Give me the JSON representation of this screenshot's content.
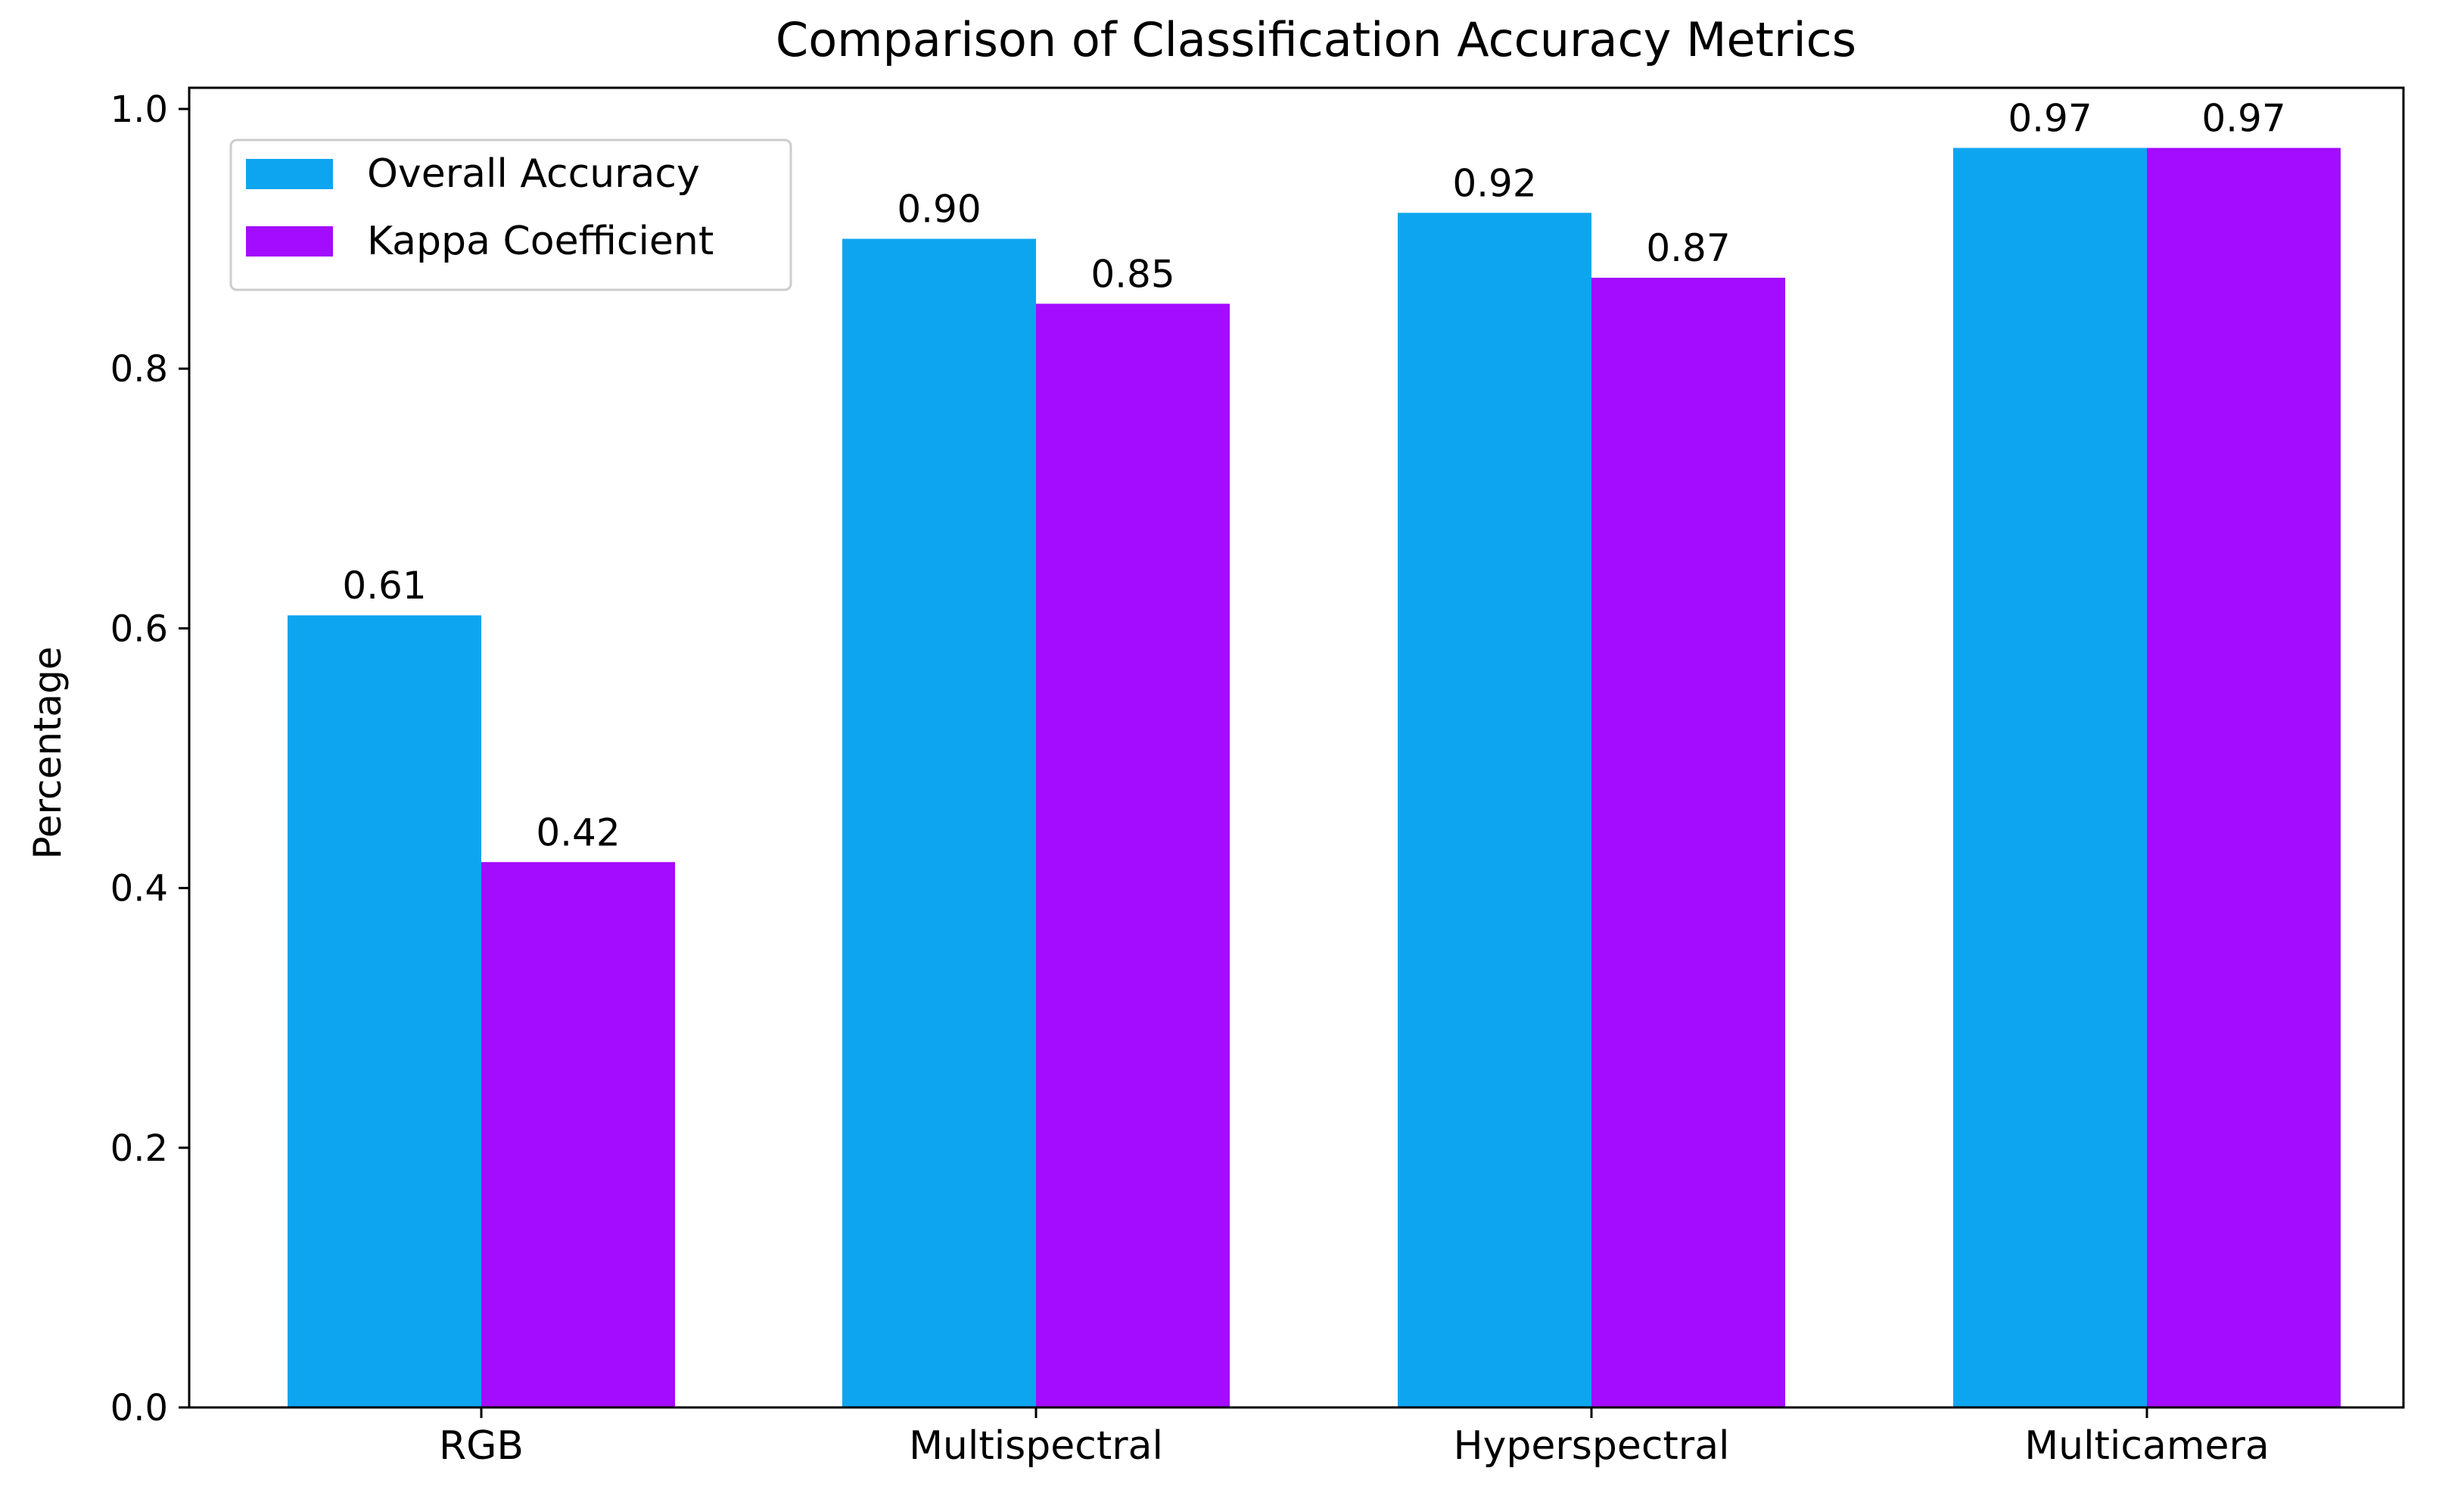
{
  "chart_data": {
    "type": "bar",
    "title": "Comparison of Classification Accuracy Metrics",
    "xlabel": "",
    "ylabel": "Percentage",
    "ylim": [
      0,
      1.0
    ],
    "yticks": [
      0.0,
      0.2,
      0.4,
      0.6,
      0.8,
      1.0
    ],
    "ytick_labels": [
      "0.0",
      "0.2",
      "0.4",
      "0.6",
      "0.8",
      "1.0"
    ],
    "grid": false,
    "legend_position": "upper-left",
    "categories": [
      "RGB",
      "Multispectral",
      "Hyperspectral",
      "Multicamera"
    ],
    "series": [
      {
        "name": "Overall Accuracy",
        "color": "#0ea5f0",
        "values": [
          0.61,
          0.9,
          0.92,
          0.97
        ],
        "labels": [
          "0.61",
          "0.90",
          "0.92",
          "0.97"
        ]
      },
      {
        "name": "Kappa Coefficient",
        "color": "#a30cff",
        "values": [
          0.42,
          0.85,
          0.87,
          0.97
        ],
        "labels": [
          "0.42",
          "0.85",
          "0.87",
          "0.97"
        ]
      }
    ]
  }
}
